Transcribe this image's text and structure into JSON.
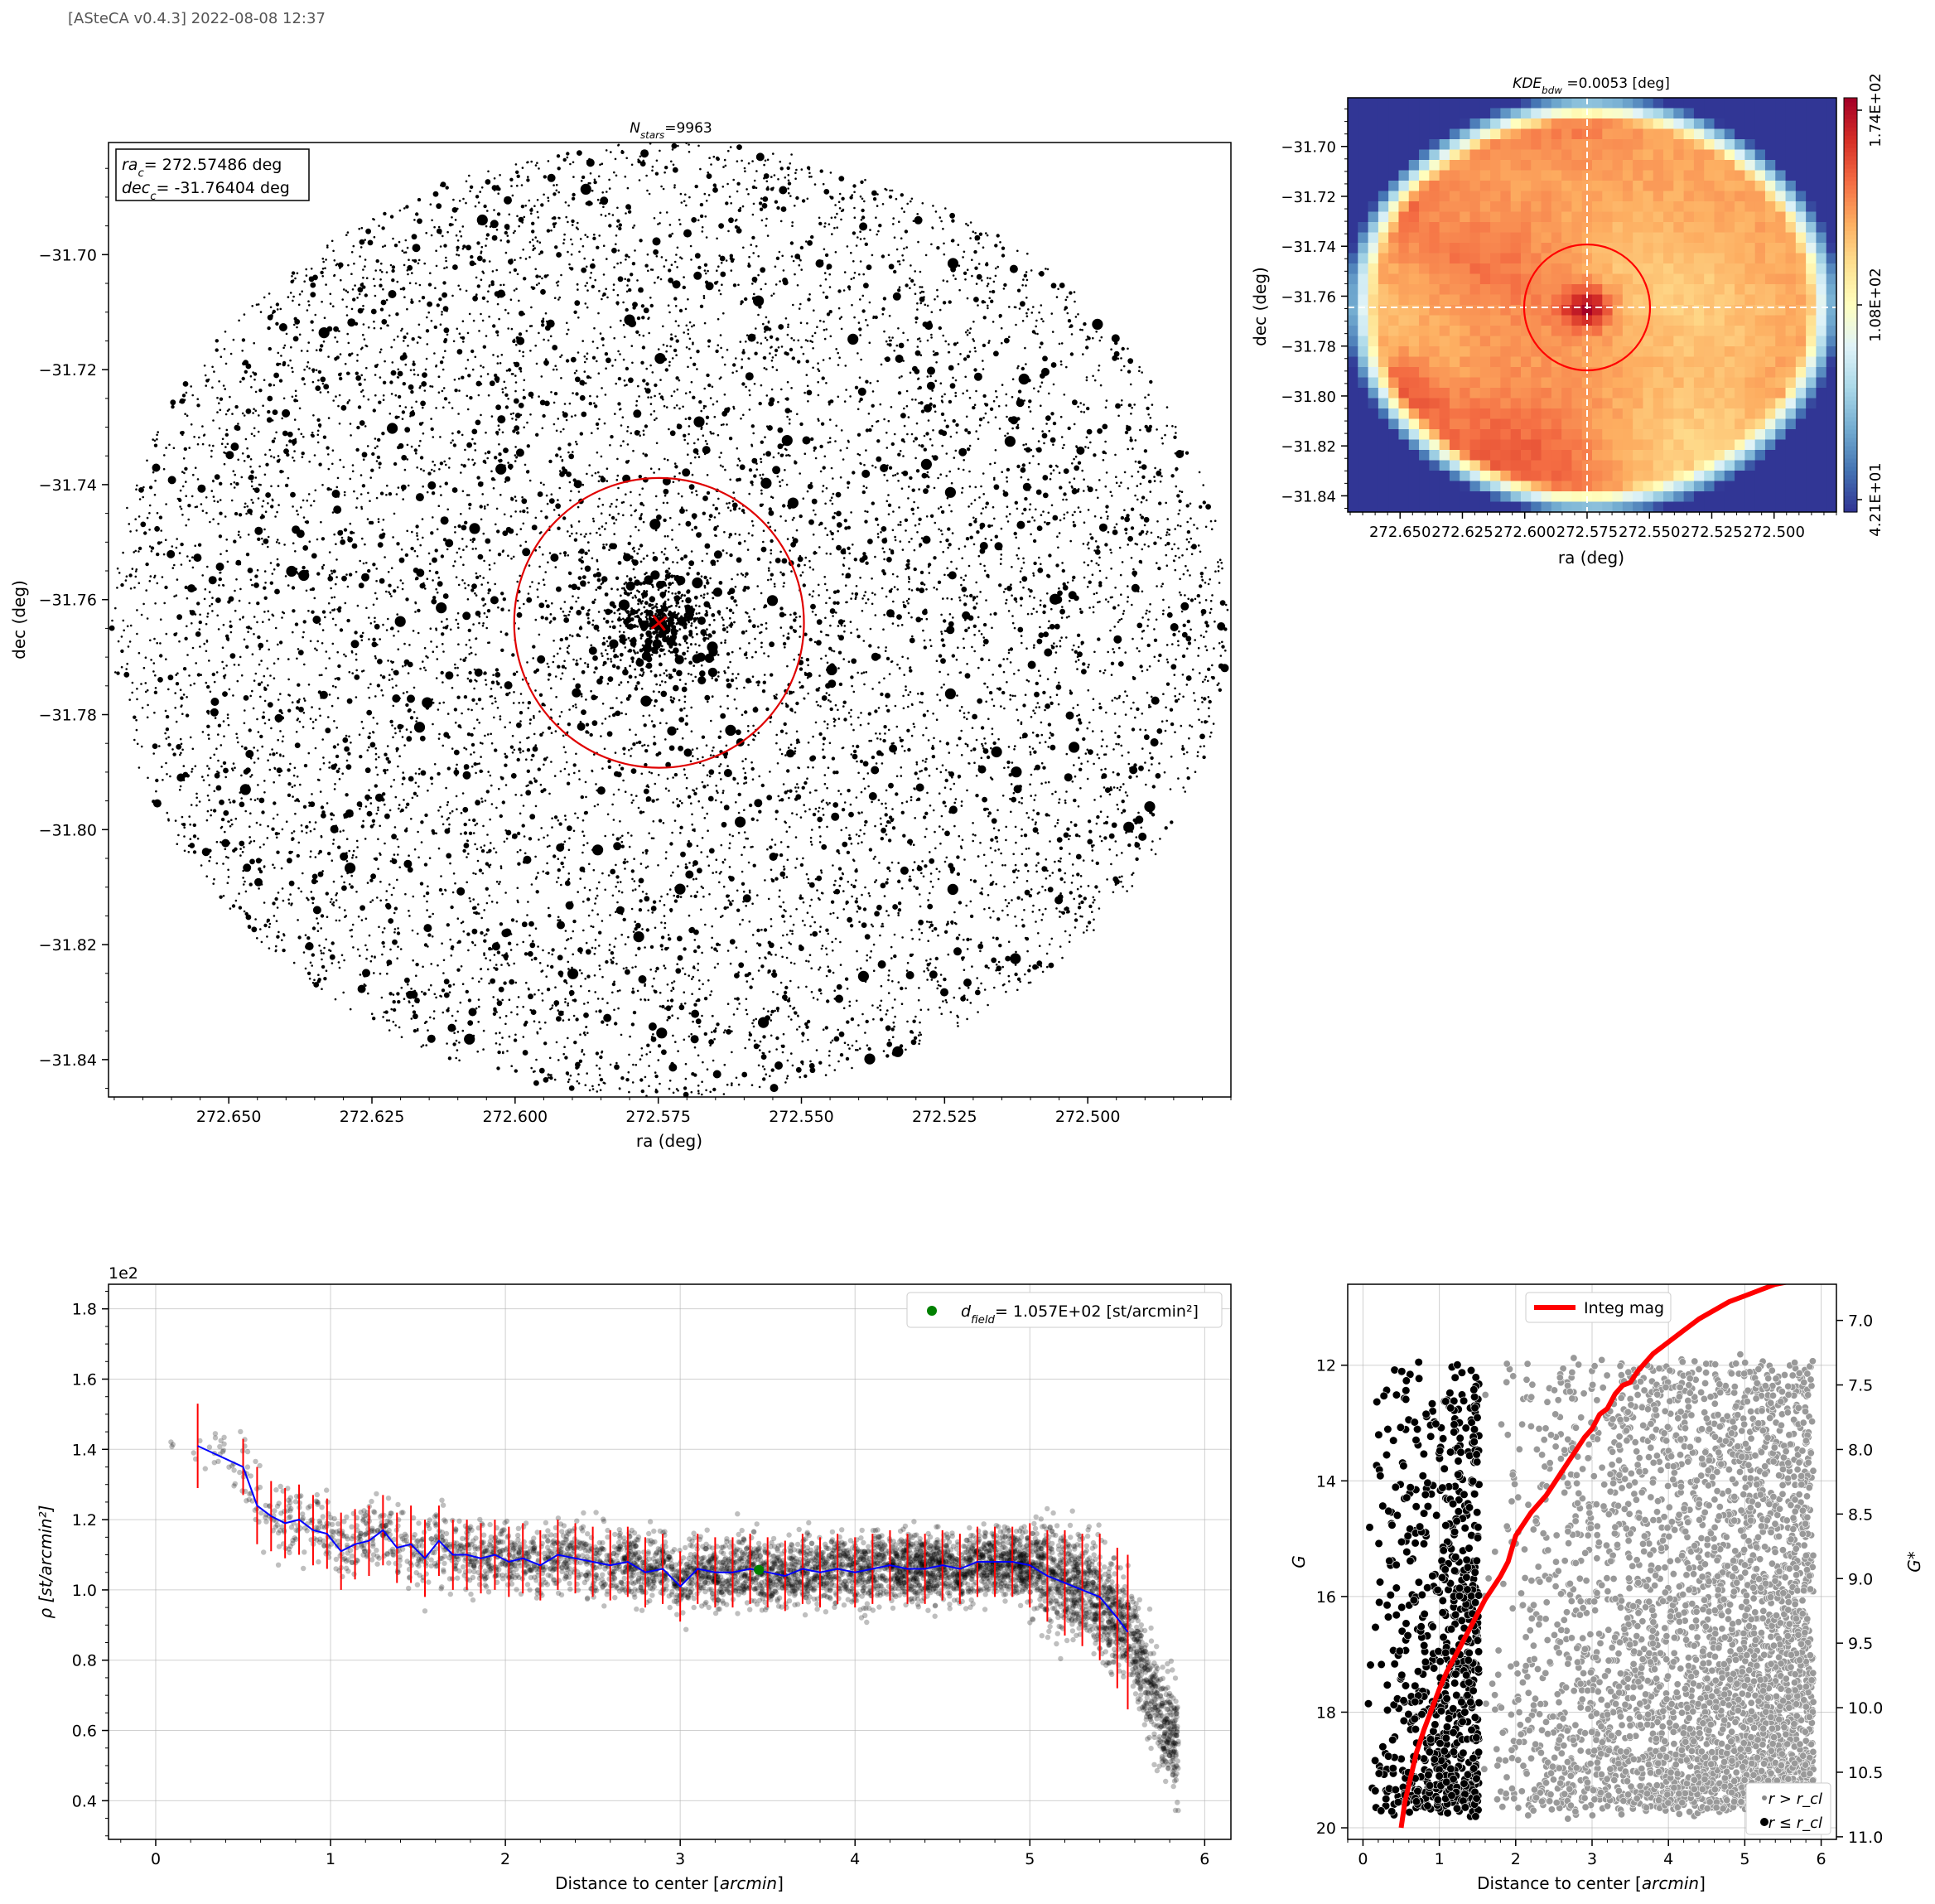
{
  "header": "[ASteCA v0.4.3] 2022-08-08 12:37",
  "chart_data": [
    {
      "type": "scatter",
      "name": "Star field",
      "title_base": "N",
      "title_sub": "stars",
      "title_rest": "=9963",
      "xlabel": "ra (deg)",
      "ylabel": "dec (deg)",
      "xlim": [
        272.671,
        272.475
      ],
      "ylim": [
        -31.8465,
        -31.6805
      ],
      "xticks": [
        "272.650",
        "272.625",
        "272.600",
        "272.575",
        "272.550",
        "272.525",
        "272.500"
      ],
      "yticks": [
        "−31.70",
        "−31.72",
        "−31.74",
        "−31.76",
        "−31.78",
        "−31.80",
        "−31.82",
        "−31.84"
      ],
      "n_stars": 9963,
      "center": {
        "ra": 272.57486,
        "dec": -31.76404
      },
      "r_cl_deg": 0.0253,
      "legend_line1_base": "ra",
      "legend_line1_sub": "c",
      "legend_line1_val": "= 272.57486 deg",
      "legend_line2_base": "dec",
      "legend_line2_sub": "c",
      "legend_line2_val": "= -31.76404 deg",
      "circle_color": "#e00000"
    },
    {
      "type": "heatmap",
      "name": "KDE density map",
      "title_base": "KDE",
      "title_sub": "bdw",
      "title_rest": " =0.0053 [deg]",
      "xlabel": "ra (deg)",
      "ylabel": "dec (deg)",
      "xlim": [
        272.671,
        272.475
      ],
      "ylim": [
        -31.8465,
        -31.6805
      ],
      "xticks": [
        "272.650",
        "272.625",
        "272.600",
        "272.575",
        "272.550",
        "272.525",
        "272.500"
      ],
      "yticks": [
        "−31.70",
        "−31.72",
        "−31.74",
        "−31.76",
        "−31.78",
        "−31.80",
        "−31.82",
        "−31.84"
      ],
      "colorbar_ticks": [
        "4.21E+01",
        "1.08E+02",
        "1.74E+02"
      ],
      "center": {
        "ra": 272.575,
        "dec": -31.7645
      },
      "colormap": "RdYlBu_r"
    },
    {
      "type": "scatter",
      "name": "Radial density profile",
      "xlabel_plain": "Distance to center [",
      "xlabel_ital": "arcmin",
      "xlabel_end": "]",
      "ylabel": "ρ [st/arcmin²]",
      "y_offset_label": "1e2",
      "xlim": [
        -0.27,
        6.15
      ],
      "ylim": [
        0.29,
        1.87
      ],
      "xticks": [
        "0",
        "1",
        "2",
        "3",
        "4",
        "5",
        "6"
      ],
      "yticks": [
        "0.4",
        "0.6",
        "0.8",
        "1.0",
        "1.2",
        "1.4",
        "1.6",
        "1.8"
      ],
      "legend_base": "d",
      "legend_sub": "field",
      "legend_text": "=  1.057E+02 [st/arcmin²]",
      "field_density": 1.057,
      "field_point_x": 3.45,
      "profile": {
        "x": [
          0.24,
          0.5,
          0.58,
          0.66,
          0.74,
          0.82,
          0.9,
          0.98,
          1.06,
          1.14,
          1.22,
          1.3,
          1.38,
          1.46,
          1.54,
          1.62,
          1.7,
          1.78,
          1.86,
          1.94,
          2.02,
          2.1,
          2.2,
          2.3,
          2.4,
          2.5,
          2.6,
          2.7,
          2.8,
          2.9,
          3.0,
          3.1,
          3.2,
          3.3,
          3.4,
          3.5,
          3.6,
          3.7,
          3.8,
          3.9,
          4.0,
          4.1,
          4.2,
          4.3,
          4.4,
          4.5,
          4.6,
          4.7,
          4.8,
          4.9,
          5.0,
          5.1,
          5.2,
          5.3,
          5.4,
          5.5,
          5.56
        ],
        "y": [
          1.41,
          1.35,
          1.24,
          1.21,
          1.19,
          1.2,
          1.17,
          1.16,
          1.11,
          1.13,
          1.14,
          1.17,
          1.12,
          1.13,
          1.09,
          1.14,
          1.1,
          1.1,
          1.09,
          1.1,
          1.08,
          1.09,
          1.07,
          1.1,
          1.09,
          1.08,
          1.07,
          1.08,
          1.05,
          1.06,
          1.01,
          1.06,
          1.05,
          1.05,
          1.06,
          1.05,
          1.04,
          1.06,
          1.05,
          1.06,
          1.05,
          1.06,
          1.07,
          1.06,
          1.06,
          1.07,
          1.06,
          1.08,
          1.08,
          1.08,
          1.07,
          1.04,
          1.02,
          1.0,
          0.98,
          0.92,
          0.88
        ],
        "err": [
          0.12,
          0.08,
          0.11,
          0.1,
          0.1,
          0.1,
          0.1,
          0.1,
          0.11,
          0.1,
          0.1,
          0.1,
          0.1,
          0.11,
          0.11,
          0.1,
          0.1,
          0.1,
          0.1,
          0.1,
          0.1,
          0.1,
          0.1,
          0.1,
          0.1,
          0.1,
          0.1,
          0.1,
          0.1,
          0.1,
          0.1,
          0.1,
          0.1,
          0.1,
          0.1,
          0.1,
          0.1,
          0.1,
          0.1,
          0.1,
          0.1,
          0.1,
          0.1,
          0.1,
          0.1,
          0.1,
          0.1,
          0.1,
          0.1,
          0.1,
          0.12,
          0.13,
          0.15,
          0.16,
          0.18,
          0.2,
          0.22
        ]
      }
    },
    {
      "type": "scatter",
      "name": "Magnitude vs distance",
      "xlabel_plain": "Distance to center [",
      "xlabel_ital": "arcmin",
      "xlabel_end": "]",
      "ylabel": "G",
      "ylabel_right": "G*",
      "xlim": [
        -0.2,
        6.2
      ],
      "ylim": [
        20.2,
        10.6
      ],
      "xticks": [
        "0",
        "1",
        "2",
        "3",
        "4",
        "5",
        "6"
      ],
      "yticks": [
        "12",
        "14",
        "16",
        "18",
        "20"
      ],
      "y2lim": [
        11.02,
        6.72
      ],
      "y2ticks": [
        "7.0",
        "7.5",
        "8.0",
        "8.5",
        "9.0",
        "9.5",
        "10.0",
        "10.5",
        "11.0"
      ],
      "legend_integ": "Integ mag",
      "legend_out": "r > r_cl",
      "legend_in": "r ≤ r_cl",
      "r_cl_arcmin": 1.52,
      "integ_curve": {
        "x": [
          0.5,
          0.55,
          0.62,
          0.7,
          0.8,
          0.9,
          1.0,
          1.1,
          1.2,
          1.3,
          1.4,
          1.5,
          1.6,
          1.7,
          1.8,
          1.9,
          2.0,
          2.1,
          2.2,
          2.3,
          2.4,
          2.5,
          2.6,
          2.7,
          2.8,
          2.9,
          3.0,
          3.1,
          3.2,
          3.3,
          3.4,
          3.5,
          3.6,
          3.7,
          3.8,
          3.9,
          4.0,
          4.2,
          4.4,
          4.6,
          4.8,
          5.0,
          5.2,
          5.4,
          5.6,
          5.8
        ],
        "y": [
          20.0,
          19.55,
          19.15,
          18.7,
          18.3,
          17.95,
          17.6,
          17.3,
          17.05,
          16.8,
          16.55,
          16.3,
          16.05,
          15.85,
          15.65,
          15.4,
          14.95,
          14.75,
          14.55,
          14.4,
          14.25,
          14.05,
          13.85,
          13.65,
          13.45,
          13.25,
          13.1,
          12.85,
          12.75,
          12.5,
          12.35,
          12.3,
          12.1,
          11.95,
          11.8,
          11.7,
          11.6,
          11.4,
          11.2,
          11.05,
          10.9,
          10.8,
          10.7,
          10.6,
          10.55,
          10.5
        ]
      }
    }
  ]
}
